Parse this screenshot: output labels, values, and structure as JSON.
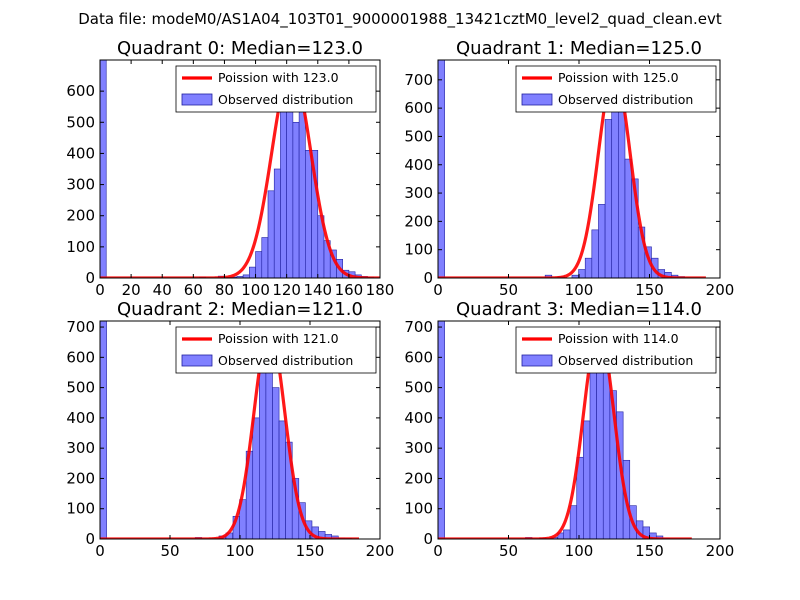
{
  "figure": {
    "suptitle": "Data file: modeM0/AS1A04_103T01_9000001988_13421cztM0_level2_quad_clean.evt"
  },
  "colors": {
    "bar_fill": "#8080ff",
    "bar_edge": "#2020a0",
    "fit_line": "#ff0000",
    "fit_peak_overlap": "#ff8080"
  },
  "chart_data": [
    {
      "type": "bar",
      "title": "Quadrant 0: Median=123.0",
      "legend": [
        "Poission with 123.0",
        "Observed distribution"
      ],
      "legend_position": "top-right",
      "xlim": [
        0,
        180
      ],
      "ylim": [
        0,
        700
      ],
      "xticks": [
        0,
        20,
        40,
        60,
        80,
        100,
        120,
        140,
        160,
        180
      ],
      "yticks": [
        0,
        100,
        200,
        300,
        400,
        500,
        600
      ],
      "bin_width": 4,
      "bins": [
        [
          0,
          700
        ],
        [
          64,
          3
        ],
        [
          76,
          6
        ],
        [
          80,
          2
        ],
        [
          84,
          3
        ],
        [
          88,
          5
        ],
        [
          92,
          10
        ],
        [
          96,
          35
        ],
        [
          100,
          85
        ],
        [
          104,
          130
        ],
        [
          108,
          280
        ],
        [
          112,
          350
        ],
        [
          116,
          540
        ],
        [
          120,
          610
        ],
        [
          124,
          500
        ],
        [
          128,
          560
        ],
        [
          132,
          410
        ],
        [
          136,
          410
        ],
        [
          140,
          200
        ],
        [
          144,
          120
        ],
        [
          148,
          90
        ],
        [
          152,
          60
        ],
        [
          156,
          25
        ],
        [
          160,
          20
        ],
        [
          164,
          10
        ],
        [
          168,
          5
        ],
        [
          172,
          3
        ]
      ],
      "fit": {
        "mean": 123,
        "peak": 670,
        "sigma": 12.5,
        "x_range": [
          0,
          180
        ]
      }
    },
    {
      "type": "bar",
      "title": "Quadrant 1: Median=125.0",
      "legend": [
        "Poission with 125.0",
        "Observed distribution"
      ],
      "legend_position": "top-right",
      "xlim": [
        0,
        200
      ],
      "ylim": [
        0,
        770
      ],
      "xticks": [
        0,
        50,
        100,
        150,
        200
      ],
      "yticks": [
        0,
        100,
        200,
        300,
        400,
        500,
        600,
        700
      ],
      "bin_width": 4.7,
      "bins": [
        [
          0,
          770
        ],
        [
          76,
          10
        ],
        [
          85,
          5
        ],
        [
          95,
          10
        ],
        [
          99.7,
          30
        ],
        [
          104.4,
          70
        ],
        [
          109.1,
          170
        ],
        [
          113.8,
          260
        ],
        [
          118.5,
          560
        ],
        [
          123.2,
          700
        ],
        [
          127.9,
          600
        ],
        [
          132.6,
          420
        ],
        [
          137.3,
          350
        ],
        [
          142,
          180
        ],
        [
          146.7,
          110
        ],
        [
          151.4,
          70
        ],
        [
          156.1,
          30
        ],
        [
          160.8,
          20
        ],
        [
          165.5,
          10
        ],
        [
          170.2,
          5
        ]
      ],
      "fit": {
        "mean": 125,
        "peak": 730,
        "sigma": 11.2,
        "x_range": [
          0,
          190
        ]
      }
    },
    {
      "type": "bar",
      "title": "Quadrant 2: Median=121.0",
      "legend": [
        "Poission with 121.0",
        "Observed distribution"
      ],
      "legend_position": "top-right",
      "xlim": [
        0,
        200
      ],
      "ylim": [
        0,
        720
      ],
      "xticks": [
        0,
        50,
        100,
        150,
        200
      ],
      "yticks": [
        0,
        100,
        200,
        300,
        400,
        500,
        600,
        700
      ],
      "bin_width": 4.7,
      "bins": [
        [
          0,
          720
        ],
        [
          68,
          5
        ],
        [
          85,
          10
        ],
        [
          90,
          20
        ],
        [
          95,
          75
        ],
        [
          99.7,
          130
        ],
        [
          104.4,
          290
        ],
        [
          109.1,
          400
        ],
        [
          113.8,
          570
        ],
        [
          118.5,
          680
        ],
        [
          123.2,
          500
        ],
        [
          127.9,
          390
        ],
        [
          132.6,
          320
        ],
        [
          137.3,
          200
        ],
        [
          142,
          120
        ],
        [
          146.7,
          60
        ],
        [
          151.4,
          40
        ],
        [
          156.1,
          25
        ],
        [
          160.8,
          15
        ],
        [
          165.5,
          10
        ],
        [
          170.2,
          3
        ],
        [
          175,
          2
        ]
      ],
      "fit": {
        "mean": 121,
        "peak": 690,
        "sigma": 11.0,
        "x_range": [
          0,
          185
        ]
      }
    },
    {
      "type": "bar",
      "title": "Quadrant 3: Median=114.0",
      "legend": [
        "Poission with 114.0",
        "Observed distribution"
      ],
      "legend_position": "top-right",
      "xlim": [
        0,
        200
      ],
      "ylim": [
        0,
        720
      ],
      "xticks": [
        0,
        50,
        100,
        150,
        200
      ],
      "yticks": [
        0,
        100,
        200,
        300,
        400,
        500,
        600,
        700
      ],
      "bin_width": 4.7,
      "bins": [
        [
          0,
          720
        ],
        [
          62,
          5
        ],
        [
          72,
          3
        ],
        [
          80,
          5
        ],
        [
          85,
          20
        ],
        [
          89,
          30
        ],
        [
          93.7,
          110
        ],
        [
          98.4,
          270
        ],
        [
          103.1,
          390
        ],
        [
          107.8,
          580
        ],
        [
          112.5,
          620
        ],
        [
          117.2,
          660
        ],
        [
          121.9,
          490
        ],
        [
          126.6,
          420
        ],
        [
          131.3,
          260
        ],
        [
          136,
          110
        ],
        [
          140.7,
          60
        ],
        [
          145.4,
          40
        ],
        [
          150.1,
          20
        ],
        [
          154.8,
          10
        ],
        [
          159.5,
          3
        ]
      ],
      "fit": {
        "mean": 114,
        "peak": 690,
        "sigma": 10.7,
        "x_range": [
          0,
          180
        ]
      }
    }
  ]
}
